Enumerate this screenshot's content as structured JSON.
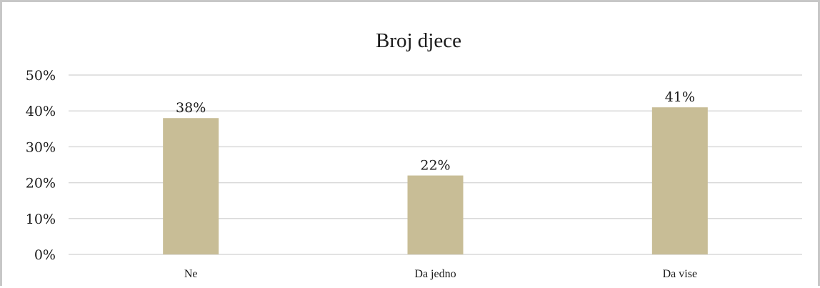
{
  "chart_data": {
    "type": "bar",
    "title": "Broj djece",
    "categories": [
      "Ne",
      "Da jedno",
      "Da vise"
    ],
    "values": [
      38,
      22,
      41
    ],
    "data_labels": [
      "38%",
      "22%",
      "41%"
    ],
    "y_ticks": [
      "0%",
      "10%",
      "20%",
      "30%",
      "40%",
      "50%"
    ],
    "ylim": [
      0,
      50
    ],
    "xlabel": "",
    "ylabel": "",
    "grid": true,
    "legend": "none",
    "bar_color": "#c8bd96",
    "grid_color": "#d9d9d9"
  }
}
